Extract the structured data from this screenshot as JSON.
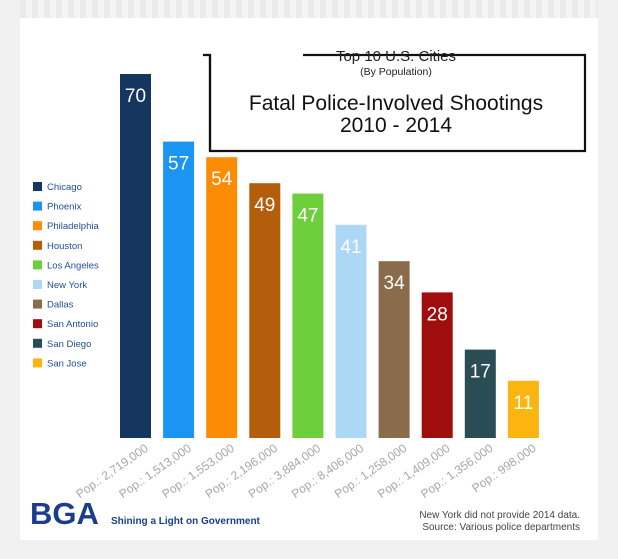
{
  "chart_data": {
    "type": "bar",
    "title": "Top 10 U.S. Cities",
    "subtitle": "(By Population)",
    "main_title_line1": "Fatal Police-Involved Shootings",
    "main_title_line2": "2010 - 2014",
    "categories": [
      "Chicago",
      "Phoenix",
      "Philadelphia",
      "Houston",
      "Los Angeles",
      "New York",
      "Dallas",
      "San Antonio",
      "San Diego",
      "San Jose"
    ],
    "values": [
      70,
      57,
      54,
      49,
      47,
      41,
      34,
      28,
      17,
      11
    ],
    "tick_labels": [
      "Pop.: 2,719,000",
      "Pop.: 1,513,000",
      "Pop.: 1,553,000",
      "Pop.: 2,196,000",
      "Pop.: 3,884,000",
      "Pop.: 8,406,000",
      "Pop.: 1,258,000",
      "Pop.: 1,409,000",
      "Pop.: 1,356,000",
      "Pop.: 998,000"
    ],
    "colors": [
      "#14365f",
      "#1b95f2",
      "#fb8c06",
      "#b45e0b",
      "#6dcf3c",
      "#acd8f6",
      "#8a6b4b",
      "#a00d0d",
      "#2a4d55",
      "#fbb510"
    ],
    "ylim": [
      0,
      70
    ],
    "xlabel": "",
    "ylabel": "",
    "legend_position": "left"
  },
  "footer": {
    "logo": "BGA",
    "tagline": "Shining a Light on Government",
    "note": "New York did not provide 2014 data.",
    "source": "Source: Various police departments"
  }
}
